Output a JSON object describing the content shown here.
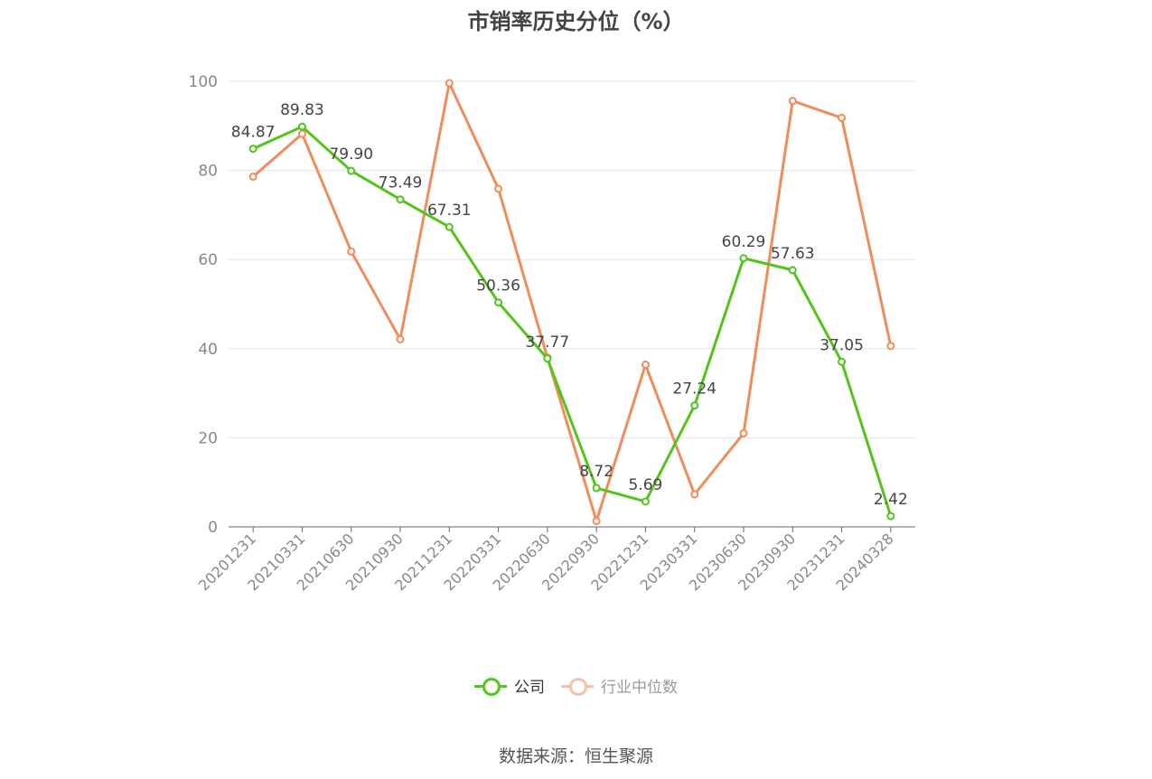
{
  "title": "市销率历史分位（%）",
  "source": "数据来源：恒生聚源",
  "colors": {
    "company": "#52c41a",
    "industry": "#f08c5a",
    "industry_legend": "#f5c0a6",
    "grid": "#e3e3f0",
    "axis": "#666666",
    "tick_text": "#888888"
  },
  "chart_data": {
    "type": "line",
    "title": "市销率历史分位（%）",
    "xlabel": "",
    "ylabel": "",
    "ylim": [
      0,
      100
    ],
    "yticks": [
      0,
      20,
      40,
      60,
      80,
      100
    ],
    "grid": true,
    "legend_position": "bottom-center",
    "categories": [
      "20201231",
      "20210331",
      "20210630",
      "20210930",
      "20211231",
      "20220331",
      "20220630",
      "20220930",
      "20221231",
      "20230331",
      "20230630",
      "20230930",
      "20231231",
      "20240328"
    ],
    "series": [
      {
        "name": "公司",
        "color": "#52c41a",
        "values": [
          84.87,
          89.83,
          79.9,
          73.49,
          67.31,
          50.36,
          37.77,
          8.72,
          5.69,
          27.24,
          60.29,
          57.63,
          37.05,
          2.42
        ],
        "labels": [
          "84.87",
          "89.83",
          "79.90",
          "73.49",
          "67.31",
          "50.36",
          "37.77",
          "8.72",
          "5.69",
          "27.24",
          "60.29",
          "57.63",
          "37.05",
          "2.42"
        ]
      },
      {
        "name": "行业中位数",
        "color": "#f08c5a",
        "values": [
          78.6,
          88.2,
          61.8,
          42.1,
          99.6,
          75.9,
          38.0,
          1.3,
          36.4,
          7.3,
          21.0,
          95.6,
          91.8,
          40.6
        ]
      }
    ]
  }
}
